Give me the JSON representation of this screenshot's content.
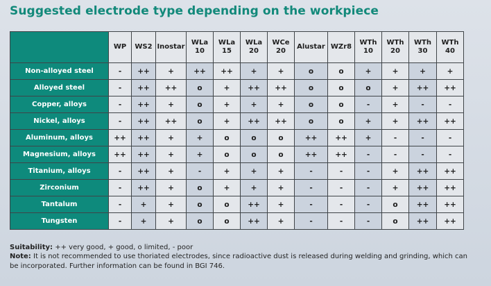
{
  "title": "Suggested electrode type depending on the workpiece",
  "columns": [
    "WP",
    "WS2",
    "Inostar",
    "WLa 10",
    "WLa 15",
    "WLa 20",
    "WCe 20",
    "Alustar",
    "WZr8",
    "WTh 10",
    "WTh 20",
    "WTh 30",
    "WTh 40"
  ],
  "rows": [
    {
      "label": "Non-alloyed steel",
      "values": [
        "-",
        "++",
        "+",
        "++",
        "++",
        "+",
        "+",
        "o",
        "o",
        "+",
        "+",
        "+",
        "+"
      ]
    },
    {
      "label": "Alloyed steel",
      "values": [
        "-",
        "++",
        "++",
        "o",
        "+",
        "++",
        "++",
        "o",
        "o",
        "o",
        "+",
        "++",
        "++"
      ]
    },
    {
      "label": "Copper, alloys",
      "values": [
        "-",
        "++",
        "+",
        "o",
        "+",
        "+",
        "+",
        "o",
        "o",
        "-",
        "+",
        "-",
        "-"
      ]
    },
    {
      "label": "Nickel, alloys",
      "values": [
        "-",
        "++",
        "++",
        "o",
        "+",
        "++",
        "++",
        "o",
        "o",
        "+",
        "+",
        "++",
        "++"
      ]
    },
    {
      "label": "Aluminum, alloys",
      "values": [
        "++",
        "++",
        "+",
        "+",
        "o",
        "o",
        "o",
        "++",
        "++",
        "+",
        "-",
        "-",
        "-"
      ]
    },
    {
      "label": "Magnesium, alloys",
      "values": [
        "++",
        "++",
        "+",
        "+",
        "o",
        "o",
        "o",
        "++",
        "++",
        "-",
        "-",
        "-",
        "-"
      ]
    },
    {
      "label": "Titanium, alloys",
      "values": [
        "-",
        "++",
        "+",
        "-",
        "+",
        "+",
        "+",
        "-",
        "-",
        "-",
        "+",
        "++",
        "++"
      ]
    },
    {
      "label": "Zirconium",
      "values": [
        "-",
        "++",
        "+",
        "o",
        "+",
        "+",
        "+",
        "-",
        "-",
        "-",
        "+",
        "++",
        "++"
      ]
    },
    {
      "label": "Tantalum",
      "values": [
        "-",
        "+",
        "+",
        "o",
        "o",
        "++",
        "+",
        "-",
        "-",
        "-",
        "o",
        "++",
        "++"
      ]
    },
    {
      "label": "Tungsten",
      "values": [
        "-",
        "+",
        "+",
        "o",
        "o",
        "++",
        "+",
        "-",
        "-",
        "-",
        "o",
        "++",
        "++"
      ]
    }
  ],
  "legend": {
    "suitability_label": "Suitability:",
    "suitability_text": " ++ very good, + good, o limited, - poor",
    "note_label": "Note:",
    "note_text": " It is not recommended to use thoriated electrodes, since radioactive dust is released during welding and grinding, which can be incorporated. Further information can be found in BGI 746."
  },
  "colors": {
    "accent": "#0e8a7c",
    "title": "#12897a",
    "shaded_column": "#cbd3de",
    "cell": "#e4e7eb"
  }
}
